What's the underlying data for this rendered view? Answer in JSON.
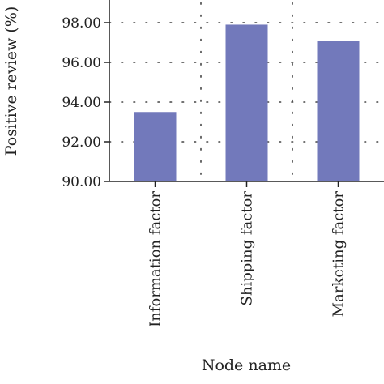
{
  "chart_data": {
    "type": "bar",
    "title": "",
    "xlabel": "Node name",
    "ylabel": "Positive review (%)",
    "categories": [
      "Information factor",
      "Shipping factor",
      "Marketing factor"
    ],
    "values": [
      93.5,
      97.9,
      97.1
    ],
    "ylim": [
      90,
      99
    ],
    "yticks": [
      "90.00",
      "92.00",
      "94.00",
      "96.00",
      "98.00"
    ],
    "ytick_values": [
      90,
      92,
      94,
      96,
      98
    ],
    "grid": true,
    "legend": "none",
    "bar_color": "#7279bb"
  }
}
